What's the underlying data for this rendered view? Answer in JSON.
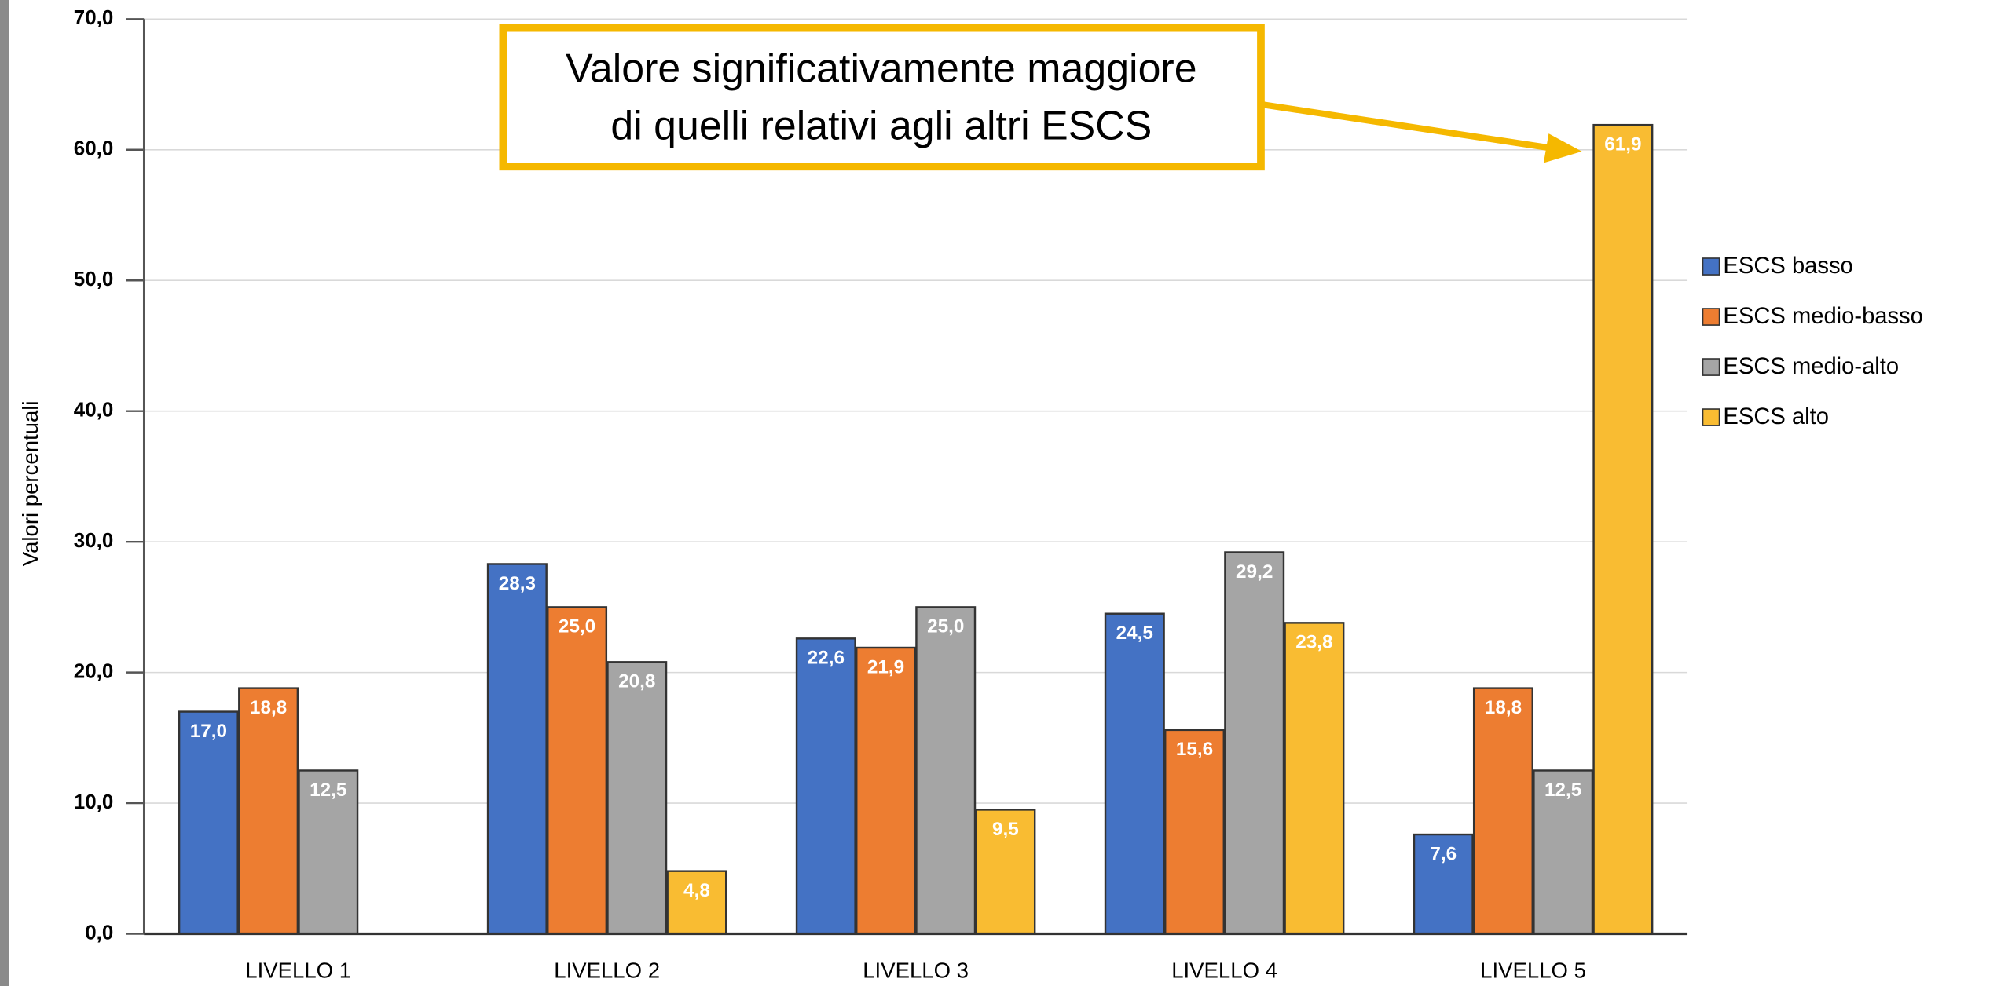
{
  "chart_data": {
    "type": "bar",
    "y_label": "Valori percentuali",
    "annotation": [
      "Valore significativamente maggiore",
      "di quelli relativi agli altri ESCS"
    ],
    "categories": [
      "LIVELLO 1",
      "LIVELLO 2",
      "LIVELLO 3",
      "LIVELLO 4",
      "LIVELLO 5"
    ],
    "series": [
      {
        "name": "ESCS basso",
        "color": "#4472c4",
        "values": [
          17.0,
          28.3,
          22.6,
          24.5,
          7.6
        ],
        "value_labels": [
          "17,0",
          "28,3",
          "22,6",
          "24,5",
          "7,6"
        ]
      },
      {
        "name": "ESCS medio-basso",
        "color": "#ed7d31",
        "values": [
          18.8,
          25.0,
          21.9,
          15.6,
          18.8
        ],
        "value_labels": [
          "18,8",
          "25,0",
          "21,9",
          "15,6",
          "18,8"
        ]
      },
      {
        "name": "ESCS medio-alto",
        "color": "#a5a5a5",
        "values": [
          12.5,
          20.8,
          25.0,
          29.2,
          12.5
        ],
        "value_labels": [
          "12,5",
          "20,8",
          "25,0",
          "29,2",
          "12,5"
        ]
      },
      {
        "name": "ESCS alto",
        "color": "#f9bc32",
        "values": [
          null,
          4.8,
          9.5,
          23.8,
          61.9
        ],
        "value_labels": [
          null,
          "4,8",
          "9,5",
          "23,8",
          "61,9"
        ]
      }
    ],
    "ylim": [
      0,
      70
    ],
    "yticks": [
      {
        "value": 0,
        "label": "0,0"
      },
      {
        "value": 10,
        "label": "10,0"
      },
      {
        "value": 20,
        "label": "20,0"
      },
      {
        "value": 30,
        "label": "30,0"
      },
      {
        "value": 40,
        "label": "40,0"
      },
      {
        "value": 50,
        "label": "50,0"
      },
      {
        "value": 60,
        "label": "60,0"
      },
      {
        "value": 70,
        "label": "70,0"
      }
    ],
    "grid": true,
    "legend": "right"
  }
}
